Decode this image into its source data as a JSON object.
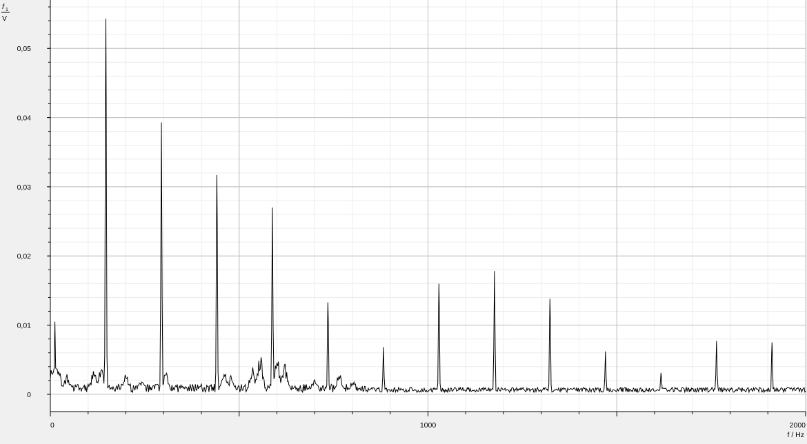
{
  "chart_data": {
    "type": "line",
    "title": "",
    "ylabel_top": "f",
    "ylabel_sub": "1",
    "ylabel_unit": "V",
    "xlabel": "f / Hz",
    "xlim": [
      0,
      2000
    ],
    "ylim": [
      -0.0025,
      0.057
    ],
    "y_ticks": [
      0,
      0.01,
      0.02,
      0.03,
      0.04,
      0.05
    ],
    "y_tick_labels": [
      "0",
      "0,01",
      "0,02",
      "0,03",
      "0,04",
      "0,05"
    ],
    "x_major_ticks": [
      0,
      1000,
      2000
    ],
    "x_tick_labels": [
      "0",
      "1000",
      "2000"
    ],
    "x_mid_grid": [
      500,
      1500
    ],
    "x_minor_step": 100,
    "y_minor_step": 0.002,
    "grid": true,
    "line_color": "#000000",
    "series": [
      {
        "peaks": [
          {
            "f": 12,
            "v": 0.0105
          },
          {
            "f": 147,
            "v": 0.0543
          },
          {
            "f": 294,
            "v": 0.0393
          },
          {
            "f": 441,
            "v": 0.0317
          },
          {
            "f": 588,
            "v": 0.027
          },
          {
            "f": 735,
            "v": 0.0133
          },
          {
            "f": 882,
            "v": 0.0068
          },
          {
            "f": 1029,
            "v": 0.016
          },
          {
            "f": 1176,
            "v": 0.0178
          },
          {
            "f": 1323,
            "v": 0.0138
          },
          {
            "f": 1470,
            "v": 0.0062
          },
          {
            "f": 1617,
            "v": 0.0031
          },
          {
            "f": 1764,
            "v": 0.0077
          },
          {
            "f": 1911,
            "v": 0.0075
          }
        ],
        "noise_bumps": [
          {
            "f": 5,
            "v": 0.004
          },
          {
            "f": 20,
            "v": 0.0042
          },
          {
            "f": 45,
            "v": 0.003
          },
          {
            "f": 115,
            "v": 0.0035
          },
          {
            "f": 135,
            "v": 0.004
          },
          {
            "f": 200,
            "v": 0.003
          },
          {
            "f": 240,
            "v": 0.0022
          },
          {
            "f": 305,
            "v": 0.0035
          },
          {
            "f": 460,
            "v": 0.004
          },
          {
            "f": 480,
            "v": 0.003
          },
          {
            "f": 535,
            "v": 0.004
          },
          {
            "f": 555,
            "v": 0.006
          },
          {
            "f": 600,
            "v": 0.0055
          },
          {
            "f": 620,
            "v": 0.0045
          },
          {
            "f": 700,
            "v": 0.0025
          },
          {
            "f": 765,
            "v": 0.0032
          },
          {
            "f": 800,
            "v": 0.002
          }
        ]
      }
    ]
  }
}
